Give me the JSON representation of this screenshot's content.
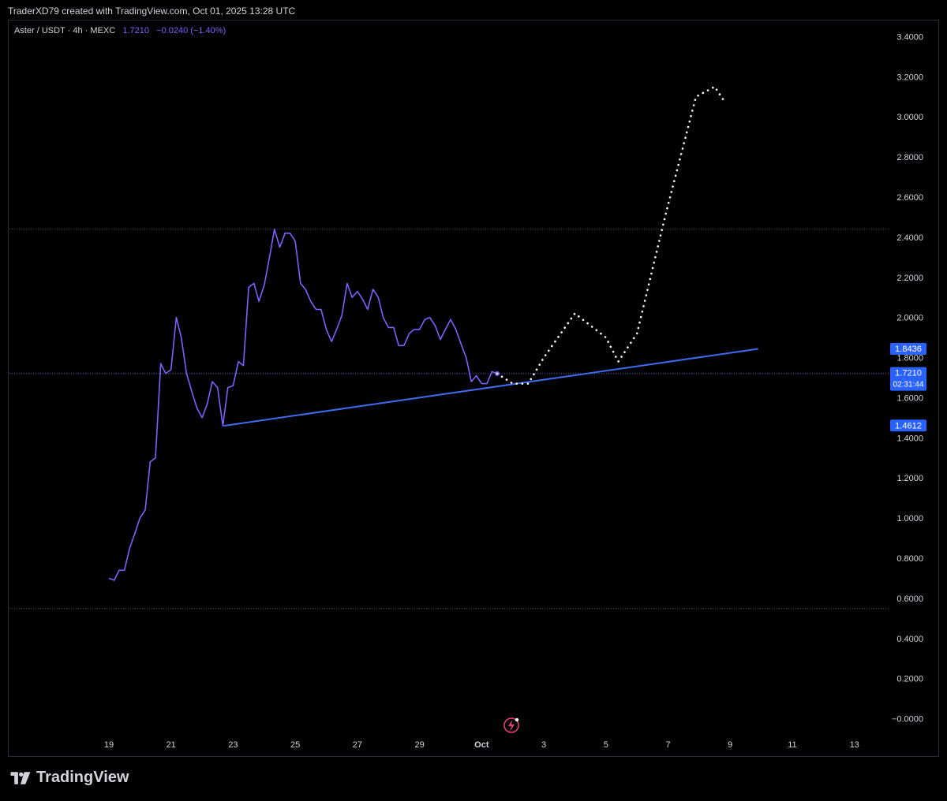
{
  "header": {
    "attribution": "TraderXD79 created with TradingView.com, Oct 01, 2025 13:28 UTC"
  },
  "legend": {
    "symbol": "Aster / USDT · 4h · MEXC",
    "last": "1.7210",
    "change": "−0.0240 (−1.40%)"
  },
  "footer": {
    "brand": "TradingView"
  },
  "colors": {
    "price_line": "#7b61ff",
    "trendline": "#3d6cf0",
    "projection": "#ffffff",
    "axis_text": "#d1d4dc",
    "label_bg": "#2962ff"
  },
  "icons": {
    "event_marker": "lightning-icon",
    "brand": "tradingview-logo-icon"
  },
  "chart_data": {
    "type": "line",
    "x_ticks": [
      "19",
      "21",
      "23",
      "25",
      "27",
      "29",
      "Oct",
      "3",
      "5",
      "7",
      "9",
      "11",
      "13"
    ],
    "y_ticks": [
      "3.4000",
      "3.2000",
      "3.0000",
      "2.8000",
      "2.6000",
      "2.4000",
      "2.2000",
      "2.0000",
      "1.8000",
      "1.6000",
      "1.4000",
      "1.2000",
      "1.0000",
      "0.8000",
      "0.6000",
      "0.4000",
      "0.2000",
      "−0.0000"
    ],
    "ylim": [
      -0.08,
      3.48
    ],
    "xlim_days": [
      -3.2,
      25.1
    ],
    "grid": false,
    "series": [
      {
        "style": "solid",
        "x": [
          0,
          0.17,
          0.33,
          0.5,
          0.67,
          0.83,
          1.0,
          1.17,
          1.33,
          1.5,
          1.67,
          1.83,
          2.0,
          2.17,
          2.33,
          2.5,
          2.67,
          2.83,
          3.0,
          3.17,
          3.33,
          3.5,
          3.67,
          3.83,
          4.0,
          4.17,
          4.33,
          4.5,
          4.67,
          4.83,
          5.0,
          5.17,
          5.33,
          5.5,
          5.67,
          5.83,
          6.0,
          6.17,
          6.33,
          6.5,
          6.67,
          6.83,
          7.0,
          7.17,
          7.33,
          7.5,
          7.67,
          7.83,
          8.0,
          8.17,
          8.33,
          8.5,
          8.67,
          8.83,
          9.0,
          9.17,
          9.33,
          9.5,
          9.67,
          9.83,
          10.0,
          10.17,
          10.33,
          10.5,
          10.67,
          10.83,
          11.0,
          11.17,
          11.33,
          11.5,
          11.67,
          11.83,
          12.0,
          12.17,
          12.33,
          12.5
        ],
        "y": [
          0.7,
          0.69,
          0.74,
          0.74,
          0.85,
          0.92,
          1.0,
          1.04,
          1.28,
          1.3,
          1.77,
          1.72,
          1.74,
          2.0,
          1.9,
          1.72,
          1.63,
          1.55,
          1.5,
          1.57,
          1.68,
          1.65,
          1.46,
          1.65,
          1.66,
          1.78,
          1.76,
          2.15,
          2.17,
          2.08,
          2.16,
          2.3,
          2.44,
          2.35,
          2.42,
          2.42,
          2.38,
          2.17,
          2.14,
          2.08,
          2.04,
          2.04,
          1.94,
          1.88,
          1.94,
          2.01,
          2.17,
          2.1,
          2.13,
          2.09,
          2.04,
          2.14,
          2.1,
          2.0,
          1.95,
          1.95,
          1.86,
          1.86,
          1.92,
          1.94,
          1.94,
          1.99,
          2.0,
          1.96,
          1.89,
          1.94,
          1.99,
          1.94,
          1.87,
          1.8,
          1.68,
          1.71,
          1.67,
          1.67,
          1.73,
          1.72
        ]
      },
      {
        "style": "dotted",
        "x": [
          12.5,
          13.0,
          13.5,
          14.0,
          15.0,
          16.0,
          16.4,
          17.0,
          17.9,
          18.9,
          19.5,
          19.8
        ],
        "y": [
          1.72,
          1.67,
          1.67,
          1.8,
          2.02,
          1.9,
          1.78,
          1.92,
          2.5,
          3.1,
          3.15,
          3.08
        ]
      },
      {
        "style": "trendline",
        "x": [
          3.7,
          20.9
        ],
        "y": [
          1.46,
          1.8436
        ]
      }
    ],
    "reference_lines": [
      2.44,
      1.72,
      0.55
    ],
    "price_labels": [
      {
        "value": 1.8436,
        "text": "1.8436"
      },
      {
        "value": 1.721,
        "text": "1.7210",
        "subtext": "02:31:44"
      },
      {
        "value": 1.4612,
        "text": "1.4612"
      }
    ]
  }
}
